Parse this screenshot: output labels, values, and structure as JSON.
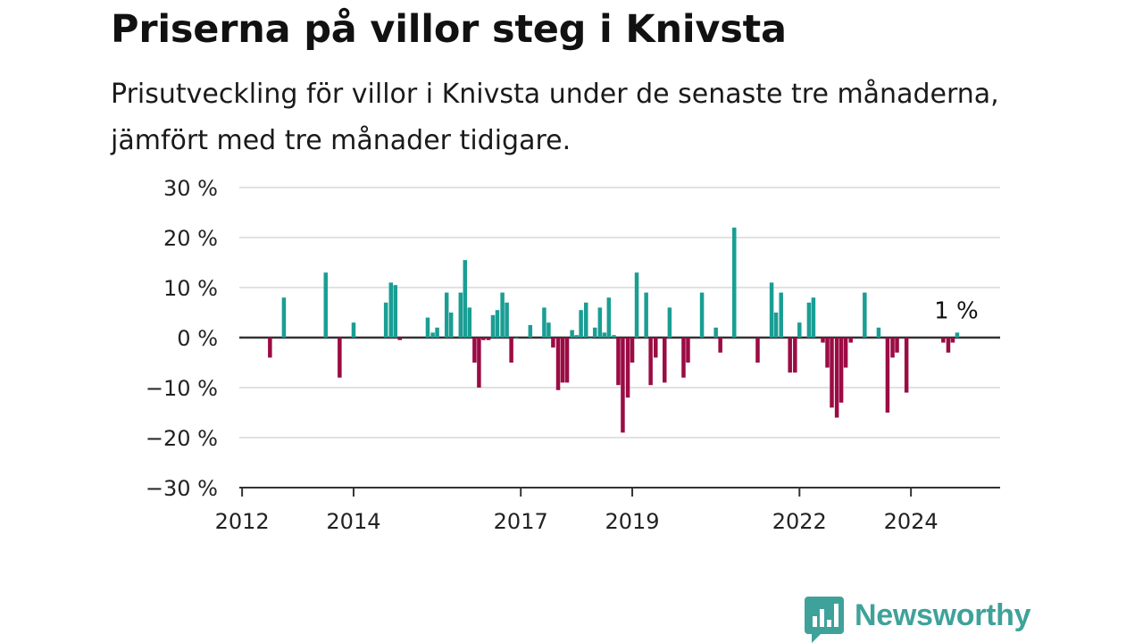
{
  "header": {
    "title": "Priserna på villor steg i Knivsta",
    "subtitle": "Prisutveckling för villor i Knivsta under de senaste tre månaderna, jämfört med tre månader tidigare."
  },
  "brand": {
    "name": "Newsworthy",
    "color": "#3fa29a",
    "icon": "bar-chart-speech-bubble-icon"
  },
  "chart_data": {
    "type": "bar",
    "title": "Priserna på villor steg i Knivsta",
    "subtitle": "Prisutveckling för villor i Knivsta under de senaste tre månaderna, jämfört med tre månader tidigare.",
    "xlabel": "",
    "ylabel": "",
    "ylim": [
      -30,
      30
    ],
    "yticks": [
      30,
      20,
      10,
      0,
      -10,
      -20,
      -30
    ],
    "ytick_labels": [
      "30 %",
      "20 %",
      "10 %",
      "0 %",
      "−10 %",
      "−20 %",
      "−30 %"
    ],
    "xticks": [
      2012,
      2014,
      2017,
      2019,
      2022,
      2024
    ],
    "xtick_labels": [
      "2012",
      "2014",
      "2017",
      "2019",
      "2022",
      "2024"
    ],
    "xlim": [
      2011.95,
      2025.6
    ],
    "grid": "horizontal",
    "colors": {
      "positive": "#1a9e94",
      "negative": "#9b0b44"
    },
    "annotation": {
      "text": "1 %",
      "x": 2024.75,
      "y": 1
    },
    "series": [
      {
        "x": [
          2012.5,
          2012.75,
          2013.5,
          2013.75,
          2014.0,
          2014.58,
          2014.67,
          2014.75,
          2014.83,
          2015.33,
          2015.42,
          2015.5,
          2015.67,
          2015.75,
          2015.92,
          2016.0,
          2016.08,
          2016.17,
          2016.25,
          2016.33,
          2016.42,
          2016.5,
          2016.58,
          2016.67,
          2016.75,
          2016.83,
          2016.92,
          2017.17,
          2017.42,
          2017.5,
          2017.58,
          2017.67,
          2017.75,
          2017.83,
          2017.92,
          2018.0,
          2018.08,
          2018.17,
          2018.25,
          2018.33,
          2018.42,
          2018.5,
          2018.58,
          2018.67,
          2018.75,
          2018.83,
          2018.92,
          2019.0,
          2019.08,
          2019.25,
          2019.33,
          2019.42,
          2019.58,
          2019.67,
          2019.92,
          2020.0,
          2020.25,
          2020.5,
          2020.58,
          2020.83,
          2021.25,
          2021.5,
          2021.58,
          2021.67,
          2021.83,
          2021.92,
          2022.0,
          2022.17,
          2022.25,
          2022.42,
          2022.5,
          2022.58,
          2022.67,
          2022.75,
          2022.83,
          2022.92,
          2023.17,
          2023.42,
          2023.58,
          2023.67,
          2023.75,
          2023.92,
          2024.58,
          2024.67,
          2024.75,
          2024.83
        ],
        "values": [
          -4,
          8,
          13,
          -8,
          3,
          7,
          11,
          10.5,
          -0.5,
          4,
          1,
          2,
          9,
          5,
          9,
          15.5,
          6,
          -5,
          -10,
          -0.5,
          -0.5,
          4.5,
          5.5,
          9,
          7,
          -5,
          0,
          2.5,
          6,
          3,
          -2,
          -10.5,
          -9,
          -9,
          1.5,
          0.5,
          5.5,
          7,
          0,
          2,
          6,
          1,
          8,
          0.5,
          -9.5,
          -19,
          -12,
          -5,
          13,
          9,
          -9.5,
          -4,
          -9,
          6,
          -8,
          -5,
          9,
          2,
          -3,
          22,
          -5,
          11,
          5,
          9,
          -7,
          -7,
          3,
          7,
          8,
          -1,
          -6,
          -14,
          -16,
          -13,
          -6,
          -1,
          9,
          2,
          -15,
          -4,
          -3,
          -11,
          -1,
          -3,
          -1,
          1
        ]
      }
    ]
  }
}
